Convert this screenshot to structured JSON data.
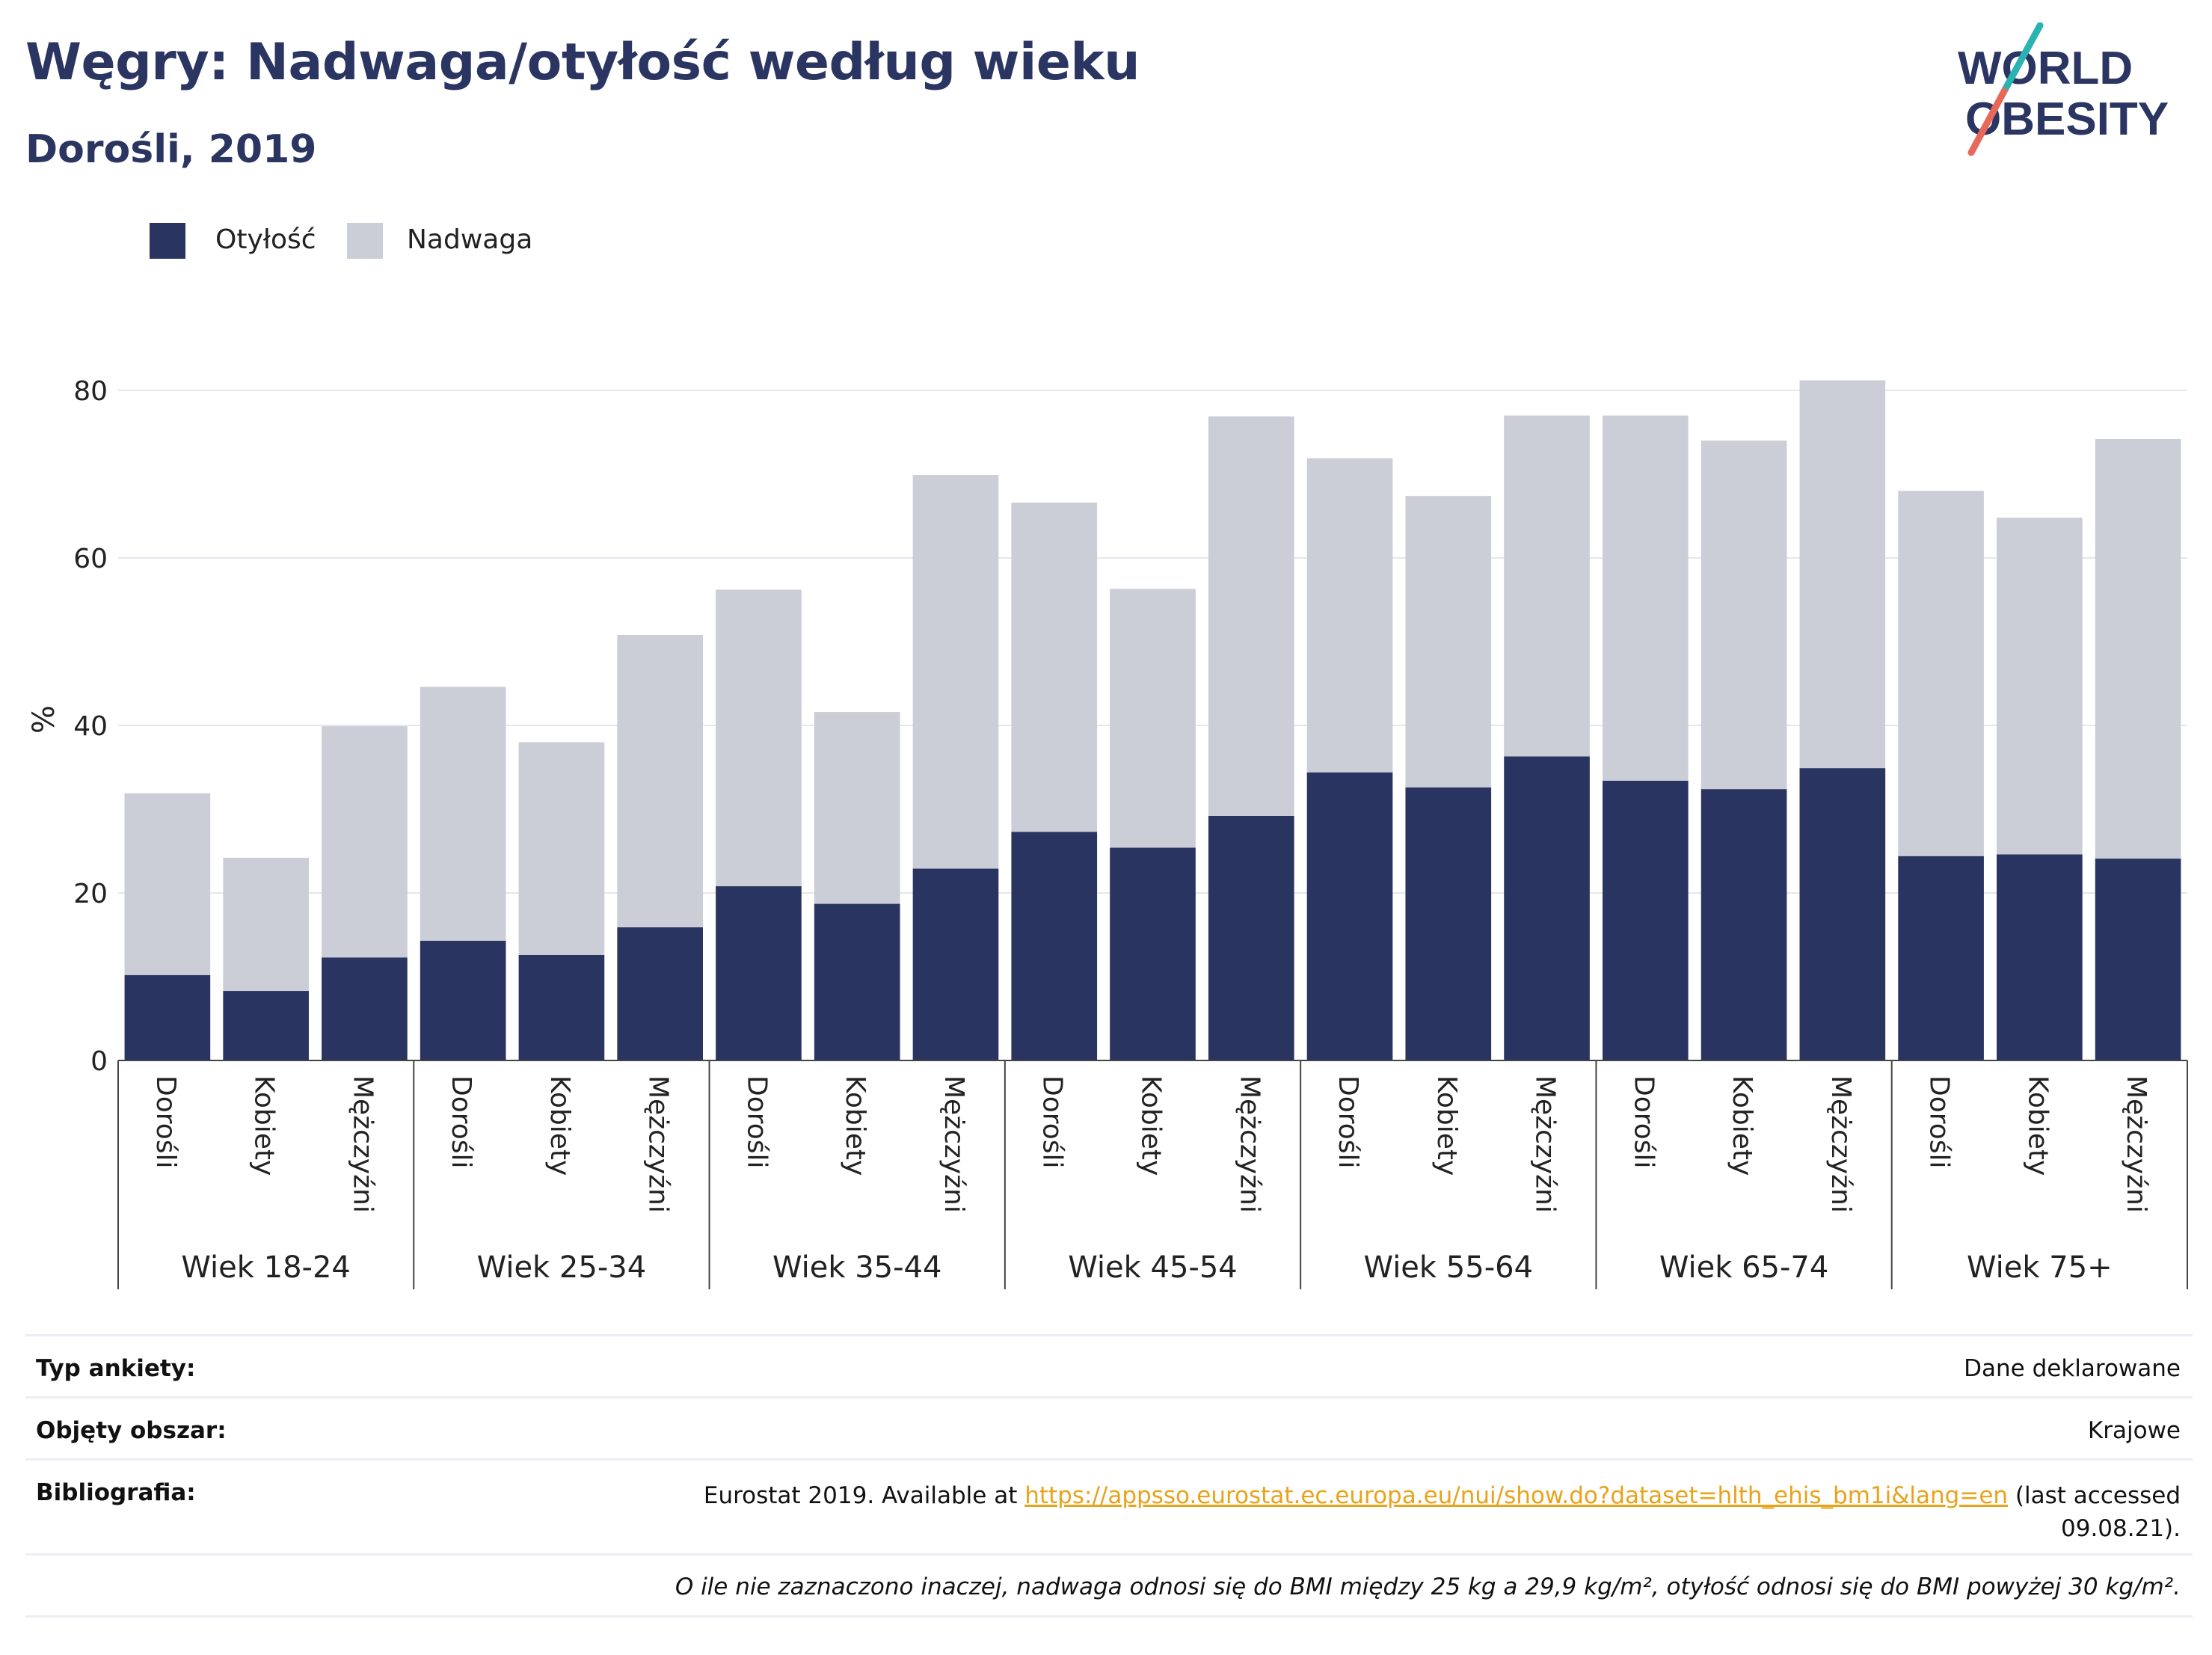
{
  "title": "Węgry: Nadwaga/otyłość według wieku",
  "subtitle": "Dorośli, 2019",
  "logo": {
    "line1": "WORLD",
    "line2": "OBESITY"
  },
  "legend": [
    {
      "label": "Otyłość",
      "color": "#293560"
    },
    {
      "label": "Nadwaga",
      "color": "#cbcdd7"
    }
  ],
  "info": {
    "survey_type_label": "Typ ankiety:",
    "survey_type_value": "Dane deklarowane",
    "area_label": "Objęty obszar:",
    "area_value": "Krajowe",
    "bibliography_label": "Bibliografia:",
    "bibliography_prefix": "Eurostat 2019. Available at",
    "bibliography_link": "https://appsso.eurostat.ec.europa.eu/nui/show.do?dataset=hlth_ehis_bm1i&lang=en",
    "bibliography_suffix_1": "(last accessed",
    "bibliography_suffix_2": "09.08.21).",
    "note": "O ile nie zaznaczono inaczej, nadwaga odnosi się do BMI między 25 kg a 29,9 kg/m², otyłość odnosi się do BMI powyżej 30 kg/m²."
  },
  "chart_data": {
    "type": "bar",
    "stacked": true,
    "ylabel": "%",
    "ylim": [
      0,
      80
    ],
    "yticks": [
      0,
      20,
      40,
      60,
      80
    ],
    "grid": true,
    "legend_position": "top-left",
    "groups": [
      "Wiek 18-24",
      "Wiek 25-34",
      "Wiek 35-44",
      "Wiek 45-54",
      "Wiek 55-64",
      "Wiek 65-74",
      "Wiek 75+"
    ],
    "subcategories": [
      "Dorośli",
      "Kobiety",
      "Mężczyźni"
    ],
    "series": [
      {
        "name": "Otyłość",
        "color": "#293560",
        "values": [
          10.2,
          8.3,
          12.3,
          14.3,
          12.6,
          15.9,
          20.8,
          18.7,
          22.9,
          27.3,
          25.4,
          29.2,
          34.4,
          32.6,
          36.3,
          33.4,
          32.4,
          34.9,
          24.4,
          24.6,
          24.1
        ]
      },
      {
        "name": "Nadwaga",
        "color": "#cbcdd7",
        "values": [
          21.7,
          15.9,
          27.6,
          30.3,
          25.4,
          34.9,
          35.4,
          22.9,
          47.0,
          39.3,
          30.9,
          47.7,
          37.5,
          34.8,
          40.7,
          43.6,
          41.6,
          46.3,
          43.6,
          40.2,
          50.1
        ]
      }
    ]
  }
}
